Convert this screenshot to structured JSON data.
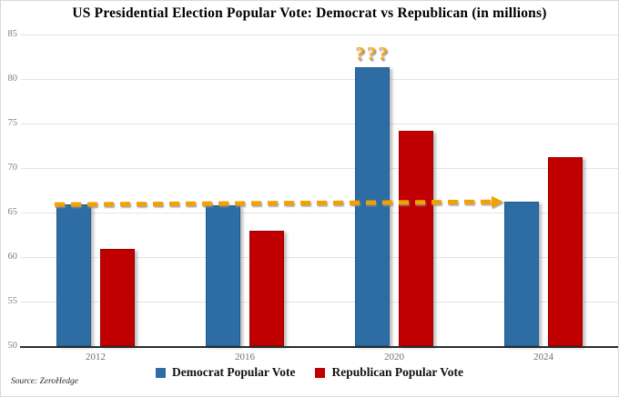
{
  "chart_data": {
    "type": "bar",
    "title": "US Presidential Election Popular Vote: Democrat vs Republican (in millions)",
    "categories": [
      "2012",
      "2016",
      "2020",
      "2024"
    ],
    "series": [
      {
        "name": "Democrat Popular Vote",
        "color": "#2E6DA4",
        "border_color": "#1F5C8E",
        "values": [
          65.9,
          65.8,
          81.3,
          66.2
        ]
      },
      {
        "name": "Republican Popular Vote",
        "color": "#C00000",
        "border_color": "#9B0000",
        "values": [
          60.9,
          63.0,
          74.2,
          71.2
        ]
      }
    ],
    "ylim": [
      50,
      85
    ],
    "yticks": [
      50,
      55,
      60,
      65,
      70,
      75,
      80,
      85
    ],
    "grid": "horizontal-only",
    "legend_position": "bottom-center",
    "axis_color": "#2b2b2b",
    "gridline_color": "#e4e4e4",
    "tick_label_color": "#7f7f7f",
    "annotations": [
      {
        "id": "question-marks",
        "label": "???",
        "color": "#F6A61B",
        "category": "2020",
        "series_index": 0,
        "placement": "above-bar"
      },
      {
        "id": "trend-arrow",
        "style": "dashed-arrow",
        "color": "#F2A104",
        "from": {
          "category": "2012",
          "value": 65.9
        },
        "to": {
          "category": "2024",
          "value": 66.2
        }
      }
    ]
  },
  "footer": {
    "source_note": "Source: ZeroHedge"
  }
}
